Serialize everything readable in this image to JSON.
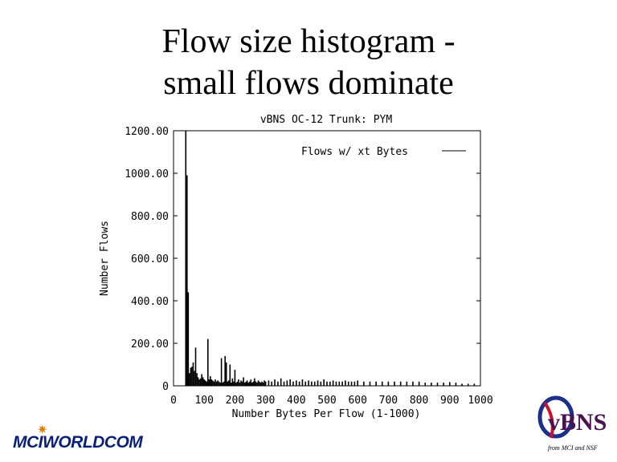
{
  "slide": {
    "title_line1": "Flow size histogram -",
    "title_line2": "small flows dominate"
  },
  "logos": {
    "mci": "MCIWORLDCOM",
    "vbns": "vBNS",
    "vbns_tagline": "from MCI and NSF"
  },
  "chart_data": {
    "type": "bar",
    "title": "vBNS OC-12 Trunk: PYM",
    "xlabel": "Number Bytes Per Flow (1-1000)",
    "ylabel": "Number Flows",
    "legend": {
      "label": "Flows w/ xt Bytes",
      "position": "top-right"
    },
    "xlim": [
      0,
      1000
    ],
    "ylim": [
      0,
      1200
    ],
    "xticks": [
      0,
      100,
      200,
      300,
      400,
      500,
      600,
      700,
      800,
      900,
      1000
    ],
    "xtick_labels": [
      "0",
      "100",
      "200",
      "300",
      "400",
      "500",
      "600",
      "700",
      "800",
      "900",
      "1000"
    ],
    "yticks": [
      0,
      200,
      400,
      600,
      800,
      1000,
      1200
    ],
    "ytick_labels": [
      "0",
      "200.00",
      "400.00",
      "600.00",
      "800.00",
      "1000.00",
      "1200.00"
    ],
    "x": [
      40,
      44,
      46,
      48,
      52,
      56,
      60,
      64,
      68,
      72,
      76,
      80,
      84,
      88,
      92,
      96,
      100,
      104,
      108,
      112,
      116,
      120,
      124,
      128,
      132,
      136,
      140,
      144,
      148,
      152,
      156,
      160,
      164,
      168,
      172,
      176,
      180,
      184,
      188,
      192,
      196,
      200,
      204,
      208,
      212,
      216,
      220,
      224,
      228,
      232,
      236,
      240,
      244,
      248,
      252,
      256,
      260,
      264,
      268,
      272,
      276,
      280,
      284,
      288,
      292,
      296,
      300,
      310,
      320,
      330,
      340,
      350,
      360,
      370,
      380,
      390,
      400,
      410,
      420,
      430,
      440,
      450,
      460,
      470,
      480,
      490,
      500,
      510,
      520,
      530,
      540,
      550,
      560,
      570,
      580,
      590,
      600,
      620,
      640,
      660,
      680,
      700,
      720,
      740,
      760,
      780,
      800,
      820,
      840,
      860,
      880,
      900,
      920,
      940,
      960,
      980
    ],
    "values": [
      1200,
      990,
      50,
      440,
      60,
      85,
      90,
      110,
      70,
      180,
      60,
      40,
      30,
      35,
      55,
      40,
      30,
      25,
      20,
      220,
      30,
      45,
      30,
      25,
      20,
      30,
      20,
      25,
      20,
      15,
      130,
      15,
      20,
      140,
      110,
      20,
      25,
      100,
      15,
      35,
      20,
      75,
      15,
      20,
      30,
      15,
      25,
      20,
      40,
      15,
      20,
      25,
      15,
      20,
      30,
      15,
      20,
      35,
      20,
      15,
      25,
      20,
      15,
      20,
      15,
      25,
      20,
      25,
      20,
      30,
      20,
      35,
      20,
      25,
      30,
      20,
      25,
      20,
      30,
      20,
      25,
      20,
      20,
      25,
      20,
      30,
      20,
      20,
      25,
      20,
      20,
      20,
      25,
      20,
      20,
      20,
      25,
      20,
      20,
      20,
      20,
      20,
      20,
      20,
      20,
      20,
      20,
      15,
      15,
      15,
      15,
      15,
      15,
      10,
      10,
      10
    ]
  }
}
